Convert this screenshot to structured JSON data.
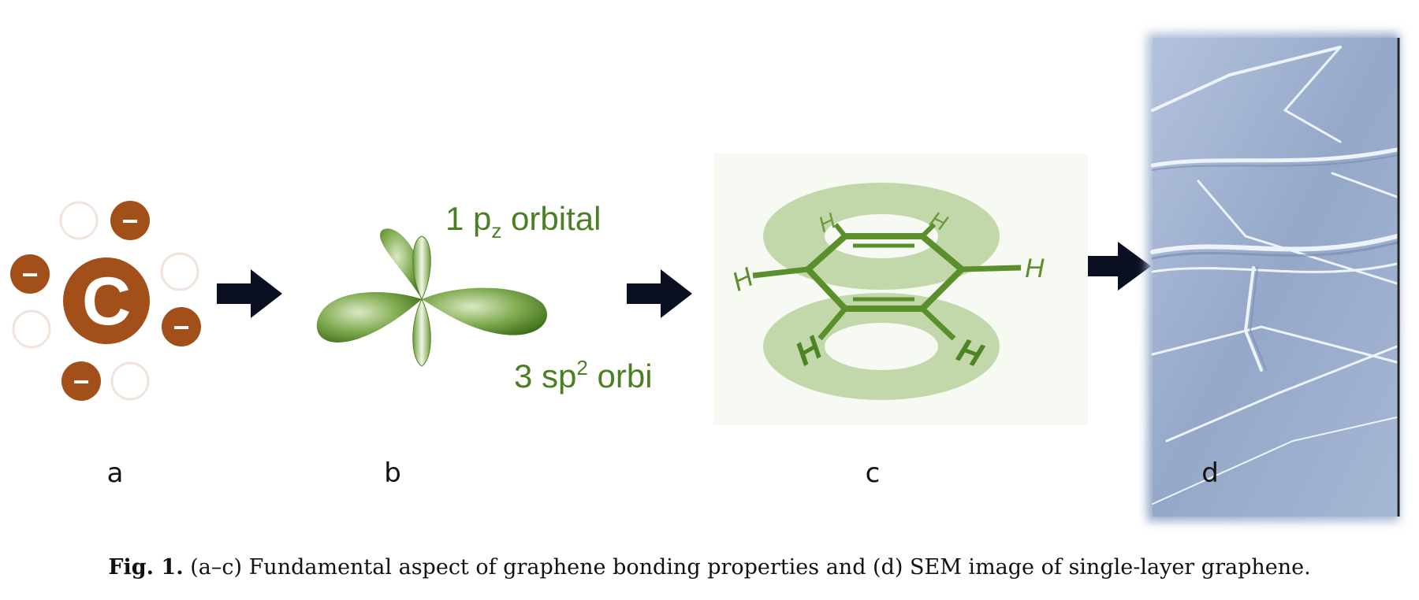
{
  "panels": {
    "a": {
      "label": "a",
      "atom_symbol": "C",
      "electron_sign": "−"
    },
    "b": {
      "label": "b",
      "pz_text": "1 p",
      "pz_sub": "z",
      "pz_rest": " orbital",
      "sp2_text": "3 sp",
      "sp2_sup": "2",
      "sp2_rest": " orbi"
    },
    "c": {
      "label": "c",
      "hydrogen": "H"
    },
    "d": {
      "label": "d"
    }
  },
  "caption": {
    "prefix": "Fig. 1.",
    "text": "(a–c) Fundamental aspect of graphene bonding properties and (d) SEM image of single-layer graphene."
  },
  "colors": {
    "carbon_brown": "#a24f1a",
    "orbital_green": "#5b8f2c",
    "label_green": "#4c7f22",
    "arrow": "#0b0f22",
    "sem_blue": "#9eb0ce"
  }
}
